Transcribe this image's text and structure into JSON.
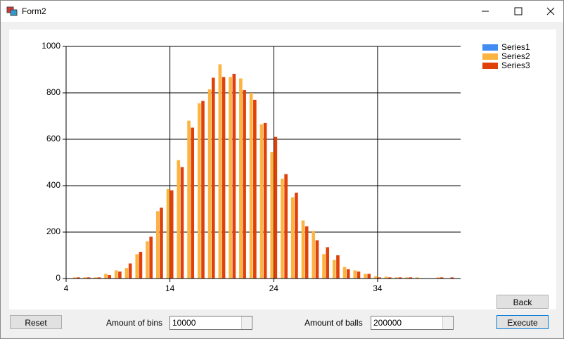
{
  "window": {
    "title": "Form2"
  },
  "chart_data": {
    "type": "bar",
    "x": [
      5,
      6,
      7,
      8,
      9,
      10,
      11,
      12,
      13,
      14,
      15,
      16,
      17,
      18,
      19,
      20,
      21,
      22,
      23,
      24,
      25,
      26,
      27,
      28,
      29,
      30,
      31,
      32,
      33,
      34,
      35,
      36,
      37,
      38,
      39,
      40,
      41
    ],
    "series": [
      {
        "name": "Series1",
        "color": "#418cf0",
        "values": [
          0,
          0,
          0,
          0,
          0,
          0,
          0,
          0,
          0,
          0,
          0,
          0,
          0,
          0,
          0,
          0,
          0,
          0,
          0,
          0,
          0,
          0,
          0,
          0,
          0,
          0,
          0,
          0,
          0,
          0,
          0,
          0,
          0,
          0,
          0,
          0,
          0
        ]
      },
      {
        "name": "Series2",
        "color": "#fcb441",
        "values": [
          5,
          5,
          5,
          20,
          35,
          45,
          105,
          160,
          290,
          385,
          510,
          680,
          755,
          815,
          923,
          868,
          862,
          800,
          665,
          545,
          430,
          350,
          250,
          205,
          105,
          80,
          50,
          35,
          20,
          10,
          8,
          5,
          5,
          5,
          0,
          5,
          0
        ]
      },
      {
        "name": "Series3",
        "color": "#e0400a",
        "values": [
          5,
          5,
          5,
          15,
          30,
          65,
          115,
          180,
          305,
          380,
          480,
          650,
          765,
          865,
          868,
          882,
          812,
          770,
          670,
          610,
          450,
          370,
          225,
          165,
          135,
          100,
          40,
          30,
          20,
          5,
          5,
          5,
          5,
          0,
          0,
          5,
          5
        ]
      }
    ],
    "xlim": [
      4,
      42
    ],
    "xticks": [
      4,
      14,
      24,
      34
    ],
    "ylim": [
      0,
      1000
    ],
    "yticks": [
      0,
      200,
      400,
      600,
      800,
      1000
    ],
    "grid": true,
    "legend": "top-right"
  },
  "controls": {
    "reset": "Reset",
    "bins_label": "Amount of bins",
    "bins_value": 10000,
    "balls_label": "Amount of balls",
    "balls_value": 200000,
    "back": "Back",
    "execute": "Execute"
  }
}
